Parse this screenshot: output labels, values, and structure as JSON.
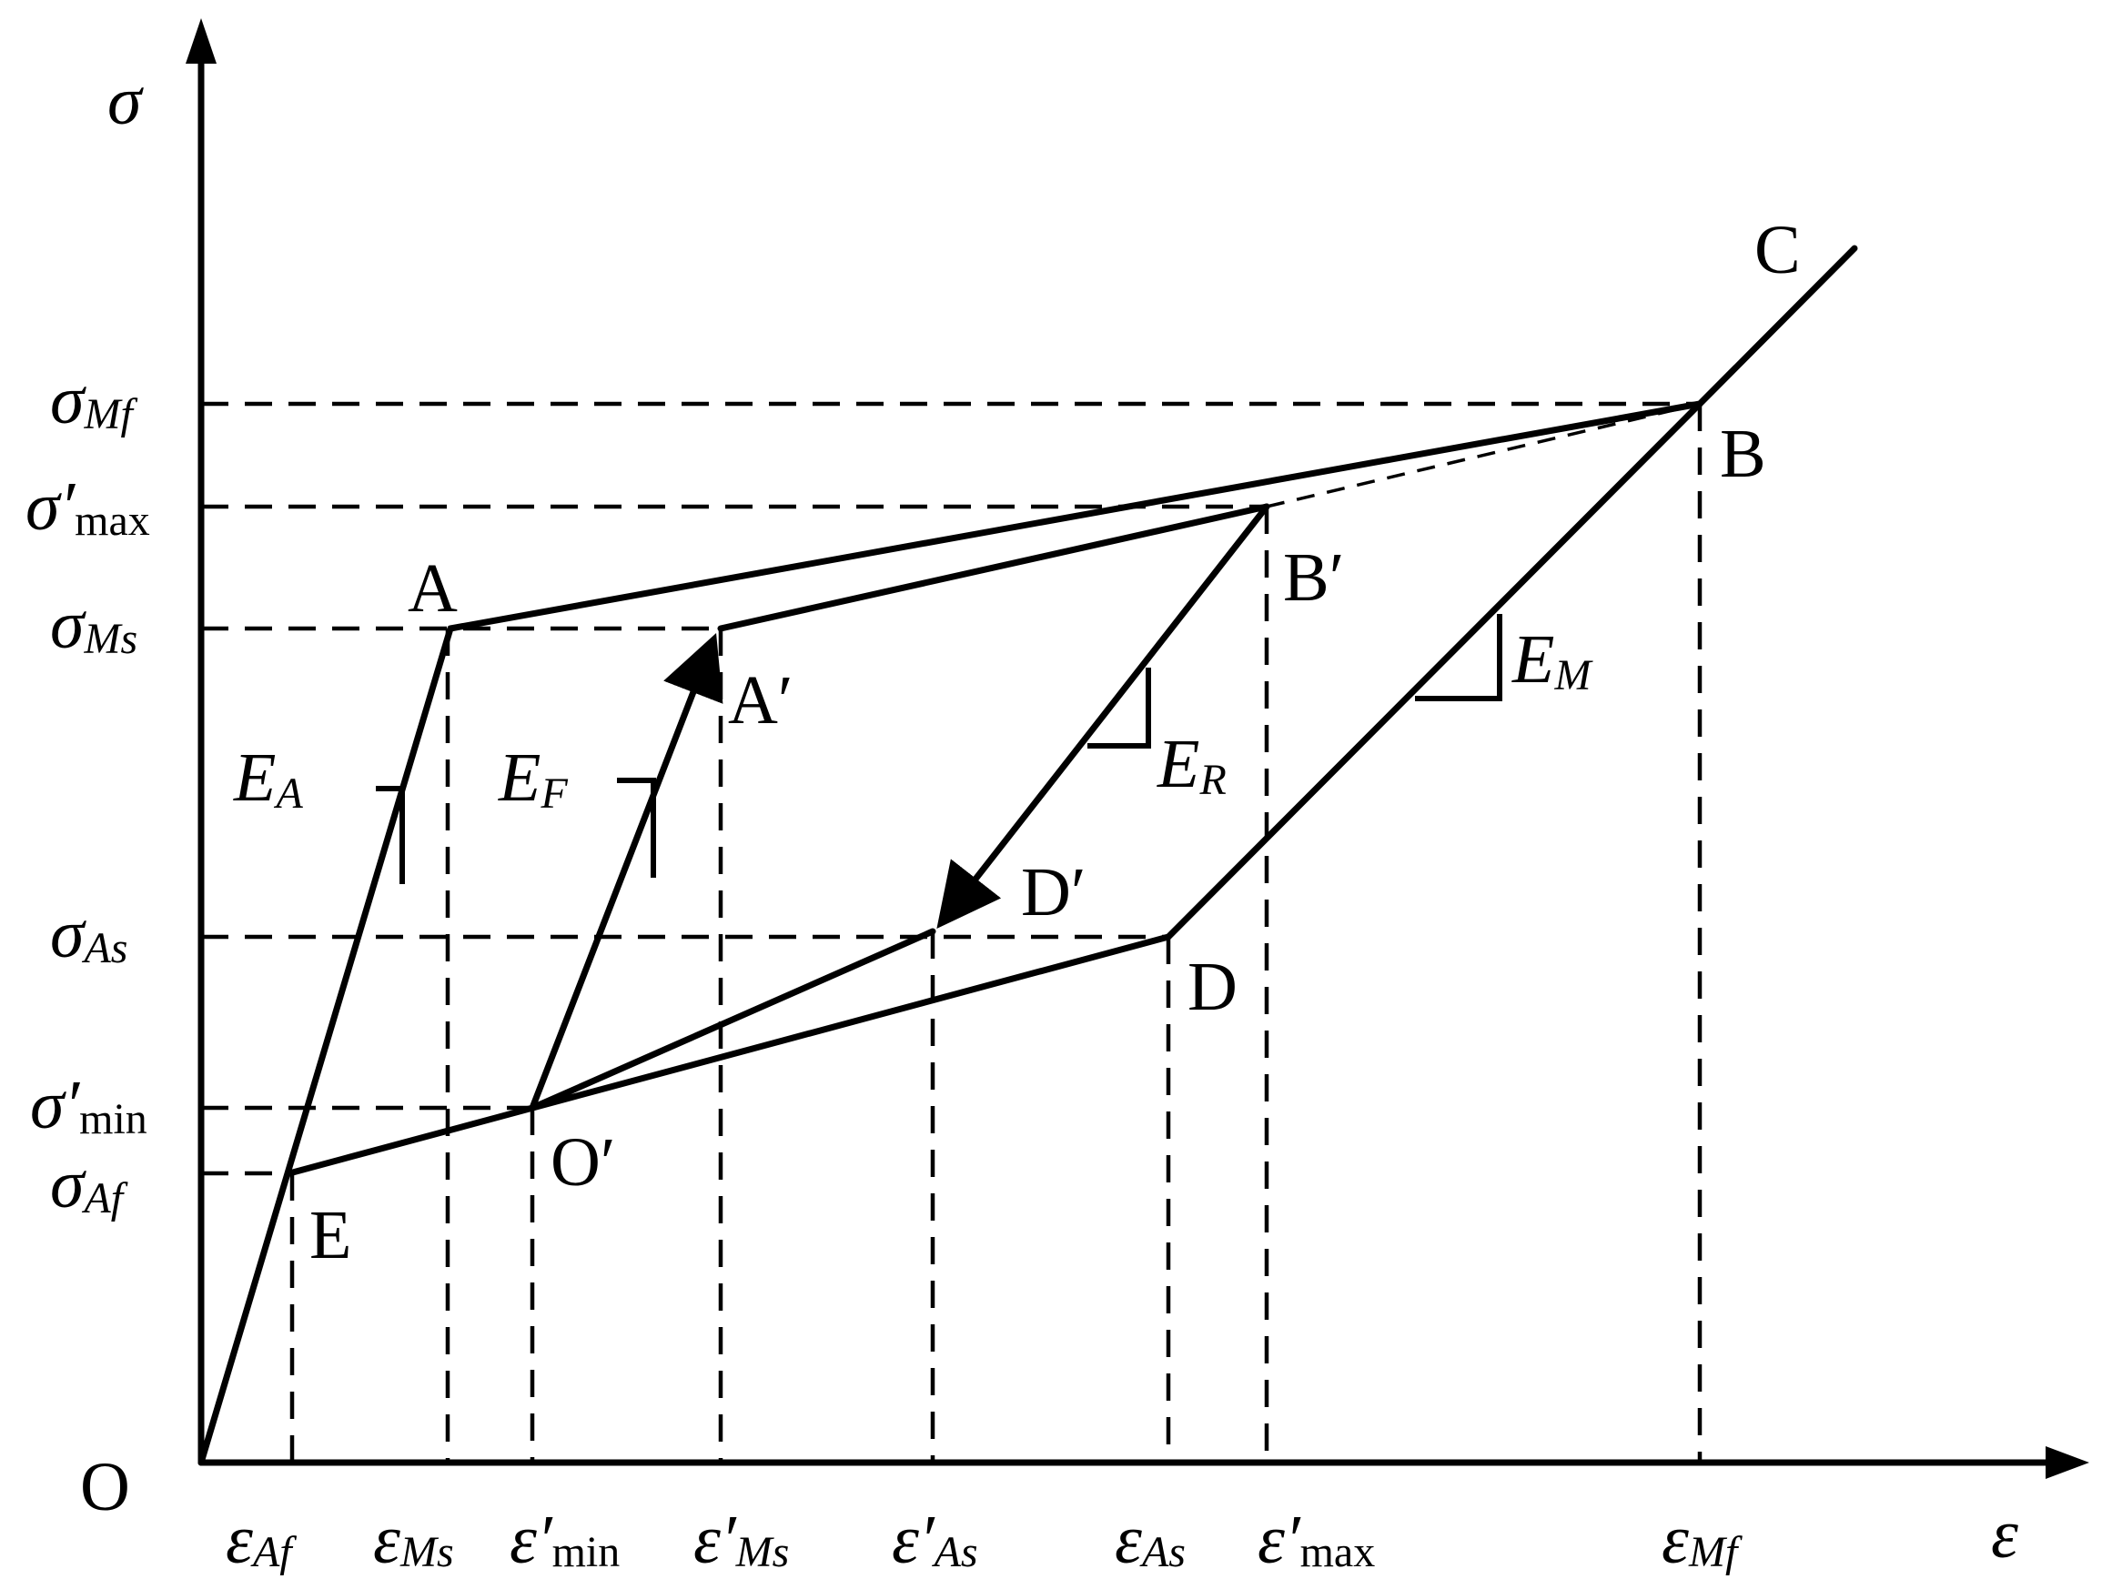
{
  "axes": {
    "y_label": "σ",
    "x_label": "ε",
    "origin_label": "O"
  },
  "points": {
    "A": "A",
    "A_prime": "A′",
    "B": "B",
    "B_prime": "B′",
    "C": "C",
    "D": "D",
    "D_prime": "D′",
    "E": "E",
    "O_prime": "O′"
  },
  "moduli": {
    "EA": {
      "main": "E",
      "sub": "A"
    },
    "EF": {
      "main": "E",
      "sub": "F"
    },
    "ER": {
      "main": "E",
      "sub": "R"
    },
    "EM": {
      "main": "E",
      "sub": "M"
    }
  },
  "stress_ticks": {
    "sigma_Mf": {
      "main": "σ",
      "sub": "Mf"
    },
    "sigma_max": {
      "main": "σ′",
      "sub": "max"
    },
    "sigma_Ms": {
      "main": "σ",
      "sub": "Ms"
    },
    "sigma_As": {
      "main": "σ",
      "sub": "As"
    },
    "sigma_min": {
      "main": "σ′",
      "sub": "min"
    },
    "sigma_Af": {
      "main": "σ",
      "sub": "Af"
    }
  },
  "strain_ticks": {
    "eps_Af": {
      "main": "ε",
      "sub": "Af"
    },
    "eps_Ms": {
      "main": "ε",
      "sub": "Ms"
    },
    "eps_min": {
      "main": "ε′",
      "sub": "min"
    },
    "eps_Ms_p": {
      "main": "ε′",
      "sub": "Ms"
    },
    "eps_As_p": {
      "main": "ε′",
      "sub": "As"
    },
    "eps_As": {
      "main": "ε",
      "sub": "As"
    },
    "eps_max": {
      "main": "ε′",
      "sub": "max"
    },
    "eps_Mf": {
      "main": "ε",
      "sub": "Mf"
    }
  }
}
